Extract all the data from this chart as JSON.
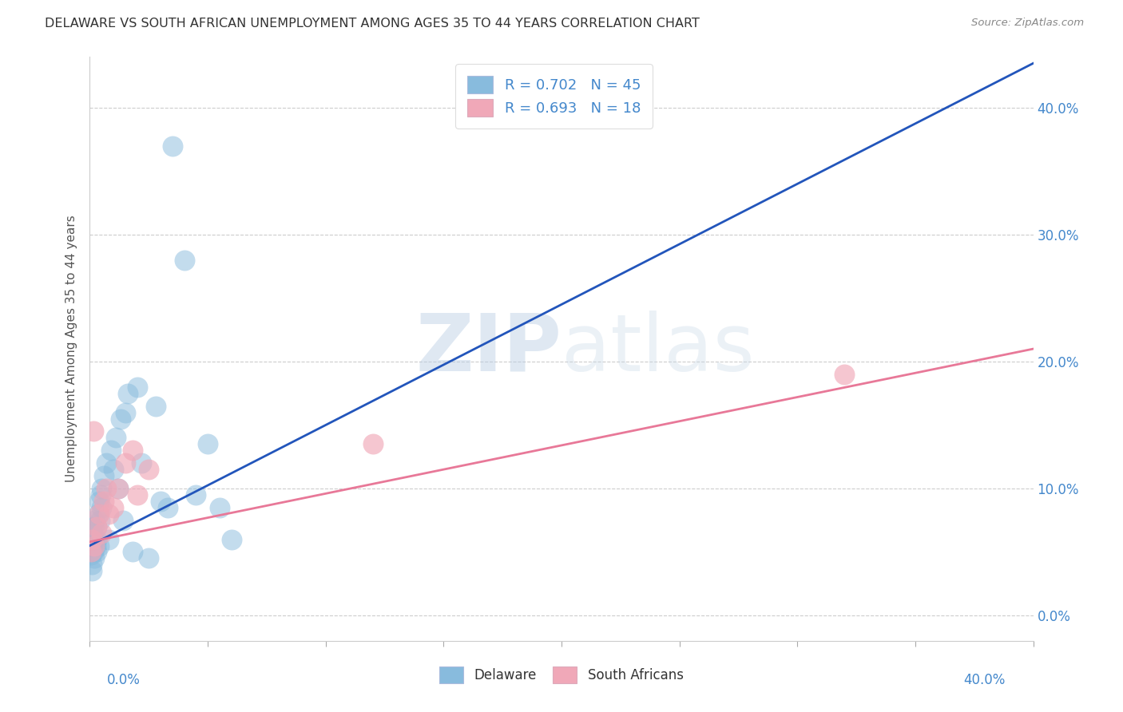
{
  "title": "DELAWARE VS SOUTH AFRICAN UNEMPLOYMENT AMONG AGES 35 TO 44 YEARS CORRELATION CHART",
  "source": "Source: ZipAtlas.com",
  "ylabel": "Unemployment Among Ages 35 to 44 years",
  "watermark_zip": "ZIP",
  "watermark_atlas": "atlas",
  "blue_line_color": "#2255bb",
  "pink_line_color": "#e87898",
  "blue_scatter_color": "#88bbdd",
  "pink_scatter_color": "#f0a8b8",
  "right_tick_color": "#4488cc",
  "bottom_tick_color": "#4488cc",
  "grid_color": "#cccccc",
  "legend1_label1": "R = 0.702   N = 45",
  "legend1_label2": "R = 0.693   N = 18",
  "legend2_label1": "Delaware",
  "legend2_label2": "South Africans",
  "xmin": 0.0,
  "xmax": 0.4,
  "ymin": -0.02,
  "ymax": 0.44,
  "delaware_x": [
    0.0005,
    0.0008,
    0.001,
    0.001,
    0.0012,
    0.0015,
    0.0015,
    0.002,
    0.002,
    0.002,
    0.0025,
    0.003,
    0.003,
    0.003,
    0.0035,
    0.0038,
    0.004,
    0.0042,
    0.0045,
    0.005,
    0.005,
    0.006,
    0.007,
    0.008,
    0.009,
    0.01,
    0.011,
    0.012,
    0.013,
    0.014,
    0.015,
    0.016,
    0.018,
    0.02,
    0.022,
    0.025,
    0.028,
    0.03,
    0.033,
    0.035,
    0.04,
    0.045,
    0.05,
    0.055,
    0.06
  ],
  "delaware_y": [
    0.048,
    0.035,
    0.055,
    0.04,
    0.065,
    0.05,
    0.07,
    0.06,
    0.045,
    0.075,
    0.055,
    0.07,
    0.05,
    0.06,
    0.08,
    0.055,
    0.09,
    0.075,
    0.095,
    0.085,
    0.1,
    0.11,
    0.12,
    0.06,
    0.13,
    0.115,
    0.14,
    0.1,
    0.155,
    0.075,
    0.16,
    0.175,
    0.05,
    0.18,
    0.12,
    0.045,
    0.165,
    0.09,
    0.085,
    0.37,
    0.28,
    0.095,
    0.135,
    0.085,
    0.06
  ],
  "sa_x": [
    0.0005,
    0.001,
    0.0015,
    0.002,
    0.003,
    0.004,
    0.005,
    0.006,
    0.007,
    0.008,
    0.01,
    0.012,
    0.015,
    0.018,
    0.02,
    0.025,
    0.12,
    0.32
  ],
  "sa_y": [
    0.05,
    0.06,
    0.145,
    0.055,
    0.07,
    0.08,
    0.065,
    0.09,
    0.1,
    0.08,
    0.085,
    0.1,
    0.12,
    0.13,
    0.095,
    0.115,
    0.135,
    0.19
  ],
  "blue_line_x": [
    0.0,
    0.4
  ],
  "blue_line_y": [
    0.055,
    0.435
  ],
  "pink_line_x": [
    0.0,
    0.4
  ],
  "pink_line_y": [
    0.058,
    0.21
  ]
}
